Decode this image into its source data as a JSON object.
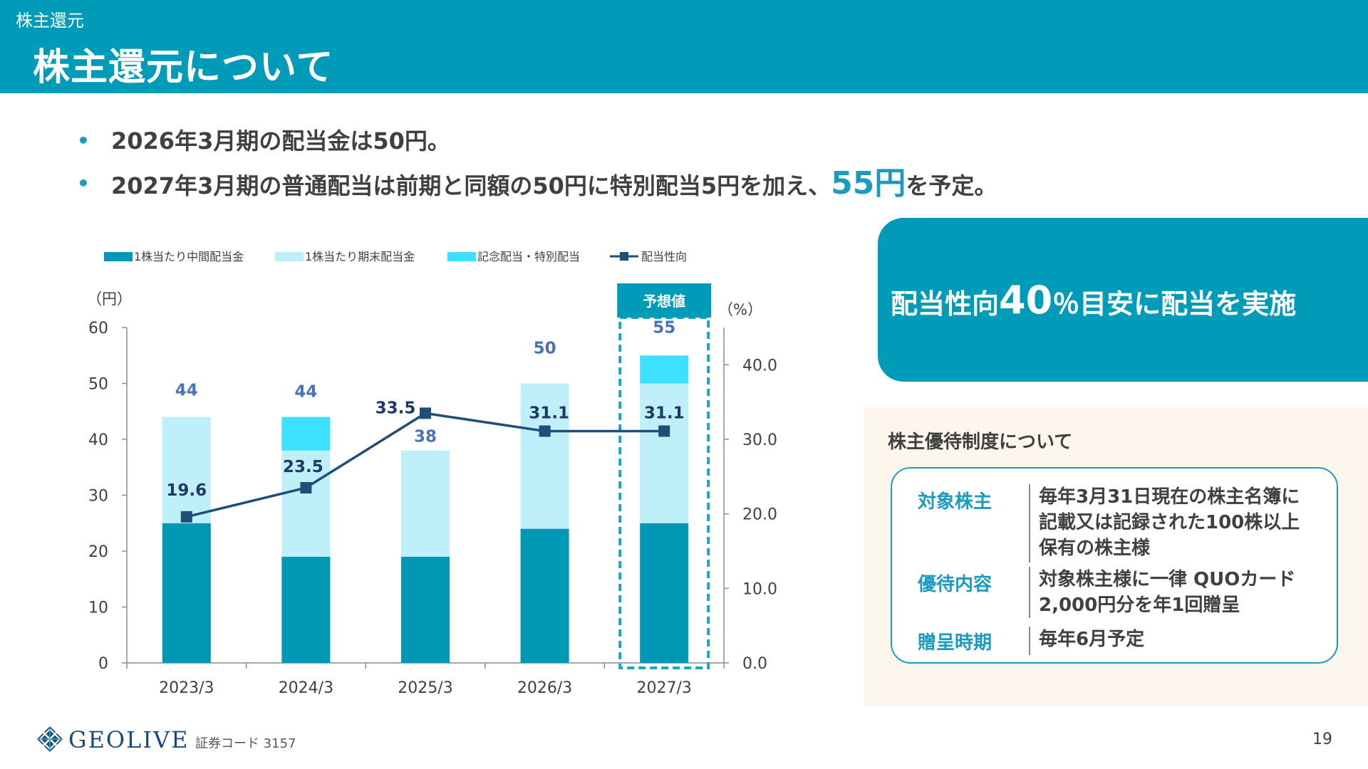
{
  "header": {
    "breadcrumb": "株主還元",
    "title": "株主還元について"
  },
  "bullets": {
    "line1": "2026年3月期の配当金は50円。",
    "line2_before": "2027年3月期の普通配当は前期と同額の50円に特別配当5円を加え、",
    "line2_accent": "55円",
    "line2_after": "を予定。"
  },
  "chart_data": {
    "type": "bar",
    "stacked": true,
    "categories": [
      "2023/3",
      "2024/3",
      "2025/3",
      "2026/3",
      "2027/3"
    ],
    "series": [
      {
        "name": "1株当たり中間配当金",
        "values": [
          25,
          19,
          19,
          24,
          25
        ],
        "color": "#0098b4"
      },
      {
        "name": "1株当たり期末配当金",
        "values": [
          19,
          19,
          19,
          26,
          25
        ],
        "color": "#bff0fa"
      },
      {
        "name": "記念配当・特別配当",
        "values": [
          0,
          6,
          0,
          0,
          5
        ],
        "color": "#3ee0ff"
      }
    ],
    "line_series": {
      "name": "配当性向",
      "values": [
        19.6,
        23.5,
        33.5,
        31.1,
        31.1
      ],
      "axis": "right",
      "color": "#1f4e79"
    },
    "totals": [
      "44",
      "44",
      "38",
      "50",
      "55"
    ],
    "line_labels": [
      "19.6",
      "23.5",
      "33.5",
      "31.1",
      "31.1"
    ],
    "ylabel_left": "（円）",
    "ylabel_right": "（%）",
    "ylim_left": [
      0,
      60
    ],
    "ylim_right": [
      0,
      45
    ],
    "yticks_left": [
      "0",
      "10",
      "20",
      "30",
      "40",
      "50",
      "60"
    ],
    "yticks_right": [
      "0.0",
      "10.0",
      "20.0",
      "30.0",
      "40.0"
    ],
    "forecast_label": "予想値",
    "forecast_category": "2027/3",
    "legend_position": "top",
    "grid": false
  },
  "payout": {
    "prefix": "配当性向",
    "value": "40",
    "suffix": "％目安に配当を実施"
  },
  "benefits": {
    "title": "株主優待制度について",
    "rows": [
      {
        "label": "対象株主",
        "value": "毎年3月31日現在の株主名簿に\n記載又は記録された100株以上\n保有の株主様"
      },
      {
        "label": "優待内容",
        "value": "対象株主様に一律 QUOカード\n2,000円分を年1回贈呈"
      },
      {
        "label": "贈呈時期",
        "value": "毎年6月予定"
      }
    ]
  },
  "footer": {
    "brand": "GEOLIVE",
    "stock_code": "証券コード 3157",
    "page_number": "19"
  },
  "colors": {
    "header": "#009bb8",
    "accent": "#1c9bbf",
    "navy": "#1f4e79",
    "panel_bg": "#fdf6ec"
  }
}
